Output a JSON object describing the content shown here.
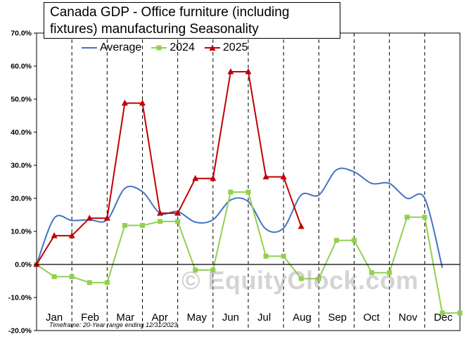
{
  "title_line1": "Canada  GDP - Office furniture  (including",
  "title_line2": "fixtures) manufacturing  Seasonality",
  "footnote": "Timeframe: 20-Year range ending 12/31/2023",
  "watermark": "© EquityClock.com",
  "colors": {
    "Average": "#4472C4",
    "2024": "#92D050",
    "2025": "#C00000"
  },
  "chart_data": {
    "type": "line",
    "title": "Canada  GDP - Office furniture  (including fixtures) manufacturing  Seasonality",
    "xlabel": "",
    "ylabel": "",
    "ylim": [
      -0.2,
      0.7
    ],
    "ytick_labels": [
      "-20.0%",
      "-10.0%",
      "0.0%",
      "10.0%",
      "20.0%",
      "30.0%",
      "40.0%",
      "50.0%",
      "60.0%",
      "70.0%"
    ],
    "categories": [
      "Jan",
      "Feb",
      "Mar",
      "Apr",
      "May",
      "Jun",
      "Jul",
      "Aug",
      "Sep",
      "Oct",
      "Nov",
      "Dec"
    ],
    "legend_position": "top",
    "grid": "vertical dashed lines at month boundaries",
    "series": [
      {
        "name": "Average",
        "style": "smooth line",
        "x": [
          0,
          0.5,
          1,
          1.5,
          2,
          2.5,
          3,
          3.5,
          4,
          4.5,
          5,
          5.5,
          6,
          6.5,
          7,
          7.5,
          8,
          8.5,
          9,
          9.5,
          10,
          10.5,
          11,
          11.5
        ],
        "values": [
          0.0,
          0.14,
          0.133,
          0.135,
          0.135,
          0.23,
          0.22,
          0.155,
          0.16,
          0.128,
          0.135,
          0.195,
          0.19,
          0.107,
          0.11,
          0.21,
          0.21,
          0.286,
          0.28,
          0.245,
          0.245,
          0.2,
          0.2,
          -0.01
        ]
      },
      {
        "name": "2024",
        "style": "line with square markers",
        "x": [
          0,
          0.5,
          1,
          1.5,
          2,
          2.5,
          3,
          3.5,
          4,
          4.5,
          5,
          5.5,
          6,
          6.5,
          7,
          7.5,
          8,
          8.5,
          9,
          9.5,
          10,
          10.5,
          11,
          11.5,
          12
        ],
        "values": [
          0.0,
          -0.037,
          -0.037,
          -0.055,
          -0.055,
          0.118,
          0.118,
          0.13,
          0.13,
          -0.017,
          -0.017,
          0.219,
          0.219,
          0.025,
          0.025,
          -0.043,
          -0.043,
          0.073,
          0.073,
          -0.025,
          -0.025,
          0.143,
          0.143,
          -0.147,
          -0.147
        ]
      },
      {
        "name": "2025",
        "style": "line with triangle markers",
        "x": [
          0,
          0.5,
          1,
          1.5,
          2,
          2.5,
          3,
          3.5,
          4,
          4.5,
          5,
          5.5,
          6,
          6.5,
          7
        ],
        "values": [
          0.0,
          0.087,
          0.087,
          0.14,
          0.14,
          0.488,
          0.488,
          0.155,
          0.155,
          0.26,
          0.26,
          0.583,
          0.583,
          0.265,
          0.265
        ]
      }
    ],
    "extra_point": {
      "series": "2025",
      "x": 7.5,
      "value": 0.115
    }
  }
}
